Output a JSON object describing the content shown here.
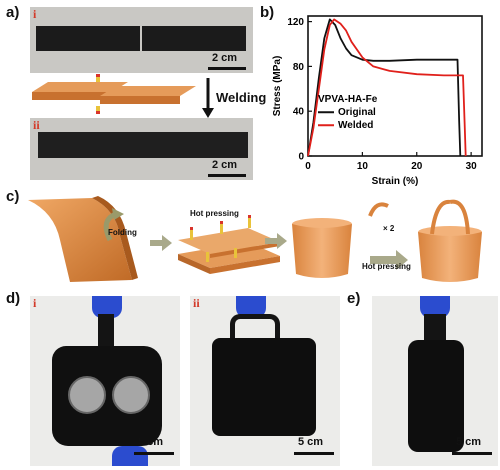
{
  "panels": {
    "a": {
      "label": "a)",
      "sub_i": "i",
      "sub_ii": "ii",
      "scale_i": "2 cm",
      "scale_ii": "2 cm",
      "welding_text": "Welding"
    },
    "b": {
      "label": "b)"
    },
    "c": {
      "label": "c)",
      "folding_text": "Folding",
      "hot_pressing_top": "Hot pressing",
      "hot_pressing_bottom": "Hot pressing",
      "times_two": "× 2"
    },
    "d": {
      "label": "d)",
      "sub_i": "i",
      "sub_ii": "ii",
      "scale_i": "5 cm",
      "scale_ii": "5 cm"
    },
    "e": {
      "label": "e)",
      "scale": "5 cm"
    }
  },
  "chart_data": {
    "type": "line",
    "xlabel": "Strain (%)",
    "ylabel": "Stress (MPa)",
    "xlim": [
      0,
      32
    ],
    "ylim": [
      0,
      125
    ],
    "xticks": [
      "0",
      "10",
      "20",
      "30"
    ],
    "yticks": [
      "0",
      "40",
      "80",
      "120"
    ],
    "legend_title": "VPVA-HA-Fe",
    "legend_position": "center-left",
    "series": [
      {
        "name": "Original",
        "color": "#111111",
        "x": [
          0,
          1,
          2,
          3,
          4,
          5,
          6,
          7,
          8,
          10,
          12,
          15,
          20,
          25,
          27.5,
          27.8,
          28
        ],
        "y": [
          0,
          30,
          70,
          105,
          122,
          117,
          105,
          96,
          90,
          86,
          85,
          85,
          86,
          86,
          86,
          30,
          0
        ]
      },
      {
        "name": "Welded",
        "color": "#e0201b",
        "x": [
          0,
          1,
          2,
          3,
          4,
          4.8,
          6,
          7,
          8,
          10,
          12,
          15,
          20,
          25,
          28.5,
          28.8,
          29
        ],
        "y": [
          0,
          25,
          60,
          95,
          117,
          122,
          118,
          112,
          102,
          88,
          80,
          76,
          73,
          72,
          72,
          30,
          0
        ]
      }
    ]
  }
}
